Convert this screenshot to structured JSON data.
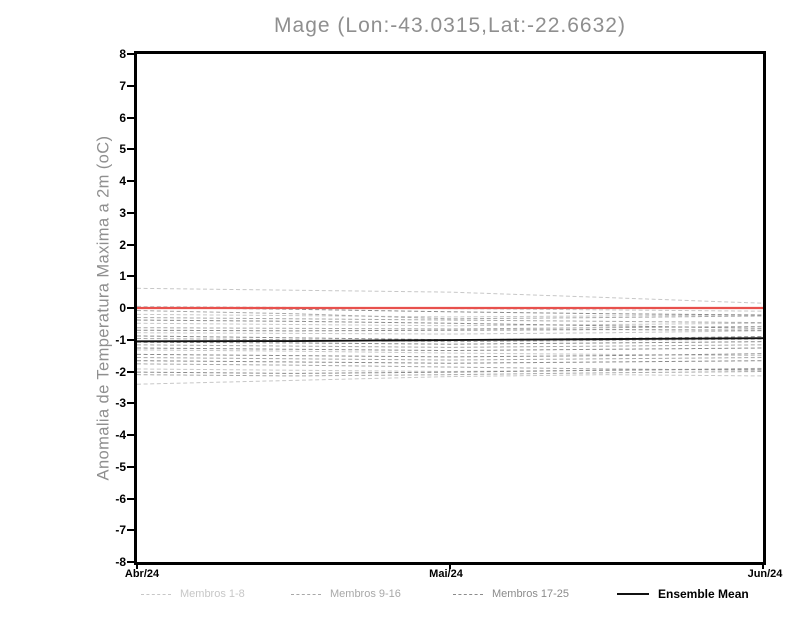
{
  "chart_data": {
    "type": "line",
    "title": "Mage (Lon:-43.0315,Lat:-22.6632)",
    "ylabel": "Anomalia de Temperatura Maxima a 2m (oC)",
    "xlabel": "",
    "ylim": [
      -8,
      8
    ],
    "yticks": [
      8,
      7,
      6,
      5,
      4,
      3,
      2,
      1,
      0,
      -1,
      -2,
      -3,
      -4,
      -5,
      -6,
      -7,
      -8
    ],
    "xticklabels": [
      "Abr/24",
      "Mai/24",
      "Jun/24"
    ],
    "xtick_positions": [
      0,
      0.5,
      1
    ],
    "grid": false,
    "legend_position": "bottom",
    "x_normalized": [
      0,
      0.25,
      0.5,
      0.75,
      1
    ],
    "groups": [
      {
        "name": "Membros 1-8",
        "color": "#c7c7c7",
        "style": "dashed",
        "members": [
          [
            0.62,
            0.56,
            0.5,
            0.33,
            0.15
          ],
          [
            0.05,
            0.02,
            -0.02,
            -0.06,
            -0.1
          ],
          [
            -0.2,
            -0.24,
            -0.28,
            -0.25,
            -0.22
          ],
          [
            -0.48,
            -0.52,
            -0.56,
            -0.52,
            -0.48
          ],
          [
            -0.78,
            -0.8,
            -0.82,
            -0.78,
            -0.72
          ],
          [
            -1.32,
            -1.36,
            -1.42,
            -1.46,
            -1.5
          ],
          [
            -1.92,
            -1.96,
            -2.0,
            -1.96,
            -1.9
          ],
          [
            -2.4,
            -2.28,
            -2.16,
            -2.1,
            -2.14
          ]
        ]
      },
      {
        "name": "Membros 9-16",
        "color": "#a8a8a8",
        "style": "dashed",
        "members": [
          [
            -0.08,
            -0.18,
            -0.34,
            -0.3,
            -0.25
          ],
          [
            -0.3,
            -0.34,
            -0.38,
            -0.42,
            -0.46
          ],
          [
            -0.62,
            -0.64,
            -0.66,
            -0.62,
            -0.58
          ],
          [
            -0.96,
            -1.0,
            -1.06,
            -1.02,
            -0.98
          ],
          [
            -1.16,
            -1.2,
            -1.24,
            -1.2,
            -1.16
          ],
          [
            -1.56,
            -1.6,
            -1.64,
            -1.6,
            -1.56
          ],
          [
            -1.76,
            -1.8,
            -1.86,
            -1.92,
            -1.96
          ],
          [
            -2.1,
            -2.14,
            -2.1,
            -2.04,
            -2.0
          ]
        ]
      },
      {
        "name": "Membros 17-25",
        "color": "#8b8b8b",
        "style": "dashed",
        "members": [
          [
            0.02,
            -0.04,
            -0.12,
            -0.18,
            -0.22
          ],
          [
            -0.38,
            -0.42,
            -0.48,
            -0.56,
            -0.64
          ],
          [
            -0.7,
            -0.72,
            -0.7,
            -0.68,
            -0.7
          ],
          [
            -0.88,
            -0.94,
            -1.0,
            -0.96,
            -0.9
          ],
          [
            -1.08,
            -1.1,
            -1.14,
            -1.1,
            -1.06
          ],
          [
            -1.26,
            -1.3,
            -1.34,
            -1.3,
            -1.26
          ],
          [
            -1.46,
            -1.5,
            -1.54,
            -1.5,
            -1.44
          ],
          [
            -1.66,
            -1.7,
            -1.74,
            -1.7,
            -1.66
          ],
          [
            -2.02,
            -2.06,
            -2.02,
            -1.96,
            -1.92
          ]
        ]
      }
    ],
    "ensemble_mean": {
      "name": "Ensemble Mean",
      "color": "#111111",
      "style": "solid",
      "values": [
        -1.05,
        -1.04,
        -1.01,
        -0.98,
        -0.95
      ]
    },
    "zero_reference_line": {
      "color": "#e8514d",
      "style": "solid",
      "values": [
        0,
        0,
        0,
        0,
        0
      ]
    }
  }
}
